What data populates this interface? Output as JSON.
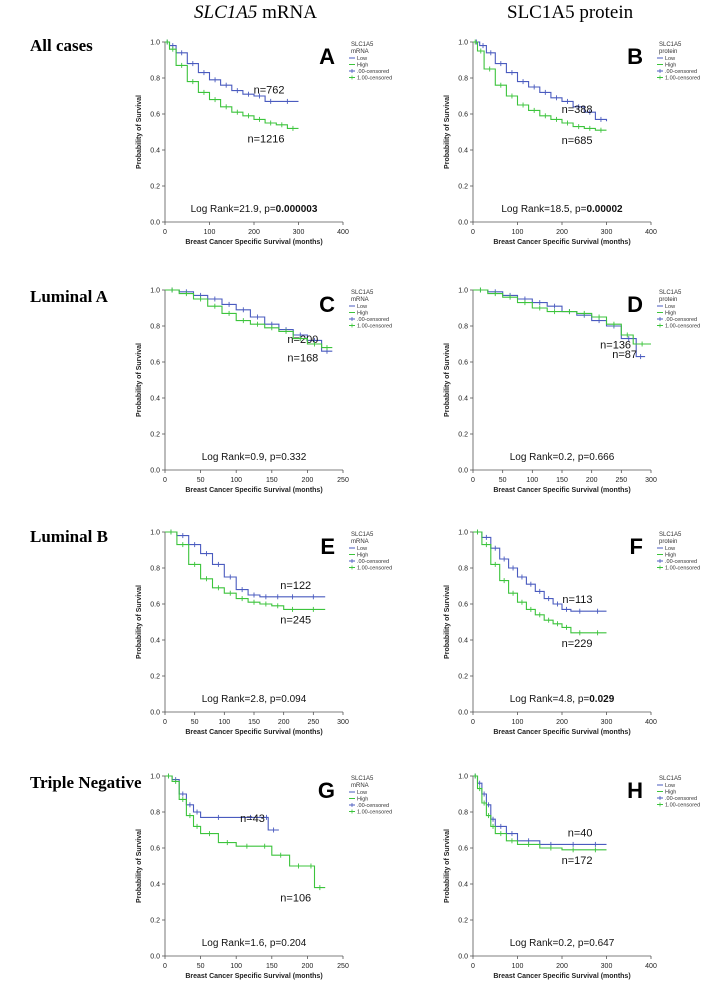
{
  "columns": [
    {
      "gene": "SLC1A5",
      "suffix": " mRNA"
    },
    {
      "gene": "SLC1A5 protein",
      "suffix": ""
    }
  ],
  "rows": [
    "All cases",
    "Luminal A",
    "Luminal B",
    "Triple Negative"
  ],
  "common": {
    "x_label": "Breast Cancer Specific Survival (months)",
    "y_label": "Probability of Survival",
    "legend_items": [
      "Low",
      "High",
      ".00-censored",
      "1.00-censored"
    ],
    "colors": {
      "low": "#4a5bbf",
      "high": "#3cc43c"
    }
  },
  "chart_data": [
    {
      "panel": "A",
      "type": "line",
      "legend_title": [
        "SLC1A5",
        "mRNA"
      ],
      "xlim": [
        0,
        400
      ],
      "xticks": [
        0,
        100,
        200,
        300,
        400
      ],
      "ylim": [
        0,
        1
      ],
      "yticks": [
        0.0,
        0.2,
        0.4,
        0.6,
        0.8,
        1.0
      ],
      "series": [
        {
          "name": "Low",
          "n_label": "n=762",
          "x": [
            0,
            10,
            25,
            50,
            75,
            100,
            125,
            150,
            175,
            200,
            225,
            250,
            300
          ],
          "y": [
            1.0,
            0.98,
            0.94,
            0.88,
            0.83,
            0.79,
            0.76,
            0.73,
            0.71,
            0.7,
            0.67,
            0.67,
            0.67
          ]
        },
        {
          "name": "High",
          "n_label": "n=1216",
          "x": [
            0,
            10,
            25,
            50,
            75,
            100,
            125,
            150,
            175,
            200,
            225,
            250,
            275,
            300
          ],
          "y": [
            1.0,
            0.96,
            0.87,
            0.78,
            0.72,
            0.68,
            0.64,
            0.61,
            0.59,
            0.57,
            0.55,
            0.54,
            0.52,
            0.52
          ]
        }
      ],
      "stat_prefix": "Log Rank=21.9, p=",
      "p_value": "0.000003",
      "p_bold": true
    },
    {
      "panel": "B",
      "type": "line",
      "legend_title": [
        "SLC1A5",
        "protein"
      ],
      "xlim": [
        0,
        400
      ],
      "xticks": [
        0,
        100,
        200,
        300,
        400
      ],
      "ylim": [
        0,
        1
      ],
      "yticks": [
        0.0,
        0.2,
        0.4,
        0.6,
        0.8,
        1.0
      ],
      "series": [
        {
          "name": "Low",
          "n_label": "n=388",
          "x": [
            0,
            15,
            30,
            50,
            75,
            100,
            125,
            150,
            175,
            200,
            225,
            250,
            275,
            300
          ],
          "y": [
            1.0,
            0.98,
            0.94,
            0.88,
            0.83,
            0.78,
            0.75,
            0.72,
            0.69,
            0.67,
            0.64,
            0.61,
            0.57,
            0.56
          ]
        },
        {
          "name": "High",
          "n_label": "n=685",
          "x": [
            0,
            10,
            25,
            50,
            75,
            100,
            125,
            150,
            175,
            200,
            225,
            250,
            275,
            300
          ],
          "y": [
            1.0,
            0.95,
            0.85,
            0.76,
            0.7,
            0.65,
            0.62,
            0.59,
            0.57,
            0.55,
            0.53,
            0.52,
            0.51,
            0.51
          ]
        }
      ],
      "stat_prefix": "Log Rank=18.5, p=",
      "p_value": "0.00002",
      "p_bold": true
    },
    {
      "panel": "C",
      "type": "line",
      "legend_title": [
        "SLC1A5",
        "mRNA"
      ],
      "xlim": [
        0,
        250
      ],
      "xticks": [
        0,
        50,
        100,
        150,
        200,
        250
      ],
      "ylim": [
        0,
        1
      ],
      "yticks": [
        0.0,
        0.2,
        0.4,
        0.6,
        0.8,
        1.0
      ],
      "series": [
        {
          "name": "Low",
          "n_label": "n=200",
          "x": [
            0,
            20,
            40,
            60,
            80,
            100,
            120,
            140,
            160,
            180,
            200,
            220,
            235
          ],
          "y": [
            1.0,
            0.99,
            0.97,
            0.95,
            0.92,
            0.89,
            0.85,
            0.81,
            0.78,
            0.75,
            0.72,
            0.66,
            0.66
          ]
        },
        {
          "name": "High",
          "n_label": "n=168",
          "x": [
            0,
            20,
            40,
            60,
            80,
            100,
            120,
            140,
            160,
            180,
            200,
            220,
            235
          ],
          "y": [
            1.0,
            0.98,
            0.95,
            0.91,
            0.87,
            0.83,
            0.81,
            0.79,
            0.77,
            0.73,
            0.7,
            0.68,
            0.68
          ]
        }
      ],
      "stat_prefix": "Log Rank=0.9, p=",
      "p_value": "0.332",
      "p_bold": false
    },
    {
      "panel": "D",
      "type": "line",
      "legend_title": [
        "SLC1A5",
        "protein"
      ],
      "xlim": [
        0,
        300
      ],
      "xticks": [
        0,
        50,
        100,
        150,
        200,
        250,
        300
      ],
      "ylim": [
        0,
        1
      ],
      "yticks": [
        0.0,
        0.2,
        0.4,
        0.6,
        0.8,
        1.0
      ],
      "series": [
        {
          "name": "Low",
          "n_label": "n=136",
          "x": [
            0,
            25,
            50,
            75,
            100,
            125,
            150,
            175,
            200,
            225,
            250,
            275,
            290
          ],
          "y": [
            1.0,
            0.99,
            0.97,
            0.95,
            0.93,
            0.91,
            0.88,
            0.86,
            0.83,
            0.8,
            0.73,
            0.63,
            0.63
          ]
        },
        {
          "name": "High",
          "n_label": "n=87",
          "x": [
            0,
            25,
            50,
            75,
            100,
            125,
            150,
            175,
            200,
            225,
            250,
            270,
            300
          ],
          "y": [
            1.0,
            0.98,
            0.96,
            0.93,
            0.9,
            0.88,
            0.88,
            0.87,
            0.85,
            0.81,
            0.75,
            0.7,
            0.7
          ]
        }
      ],
      "stat_prefix": "Log Rank=0.2, p=",
      "p_value": "0.666",
      "p_bold": false
    },
    {
      "panel": "E",
      "type": "line",
      "legend_title": [
        "SLC1A5",
        "mRNA"
      ],
      "xlim": [
        0,
        300
      ],
      "xticks": [
        0,
        50,
        100,
        150,
        200,
        250,
        300
      ],
      "ylim": [
        0,
        1
      ],
      "yticks": [
        0.0,
        0.2,
        0.4,
        0.6,
        0.8,
        1.0
      ],
      "series": [
        {
          "name": "Low",
          "n_label": "n=122",
          "x": [
            0,
            20,
            40,
            60,
            80,
            100,
            120,
            140,
            160,
            180,
            200,
            230,
            270
          ],
          "y": [
            1.0,
            0.98,
            0.93,
            0.88,
            0.82,
            0.75,
            0.68,
            0.65,
            0.64,
            0.64,
            0.64,
            0.64,
            0.64
          ]
        },
        {
          "name": "High",
          "n_label": "n=245",
          "x": [
            0,
            20,
            40,
            60,
            80,
            100,
            120,
            140,
            160,
            180,
            200,
            230,
            270
          ],
          "y": [
            1.0,
            0.93,
            0.82,
            0.74,
            0.69,
            0.66,
            0.63,
            0.61,
            0.6,
            0.59,
            0.57,
            0.57,
            0.57
          ]
        }
      ],
      "stat_prefix": "Log Rank=2.8, p=",
      "p_value": "0.094",
      "p_bold": false
    },
    {
      "panel": "F",
      "type": "line",
      "legend_title": [
        "SLC1A5",
        "protein"
      ],
      "xlim": [
        0,
        400
      ],
      "xticks": [
        0,
        100,
        200,
        300,
        400
      ],
      "ylim": [
        0,
        1
      ],
      "yticks": [
        0.0,
        0.2,
        0.4,
        0.6,
        0.8,
        1.0
      ],
      "series": [
        {
          "name": "Low",
          "n_label": "n=113",
          "x": [
            0,
            20,
            40,
            60,
            80,
            100,
            120,
            140,
            160,
            180,
            200,
            220,
            260,
            300
          ],
          "y": [
            1.0,
            0.97,
            0.91,
            0.85,
            0.8,
            0.75,
            0.71,
            0.67,
            0.63,
            0.6,
            0.57,
            0.56,
            0.56,
            0.56
          ]
        },
        {
          "name": "High",
          "n_label": "n=229",
          "x": [
            0,
            20,
            40,
            60,
            80,
            100,
            120,
            140,
            160,
            180,
            200,
            220,
            260,
            300
          ],
          "y": [
            1.0,
            0.93,
            0.82,
            0.73,
            0.66,
            0.61,
            0.57,
            0.54,
            0.51,
            0.49,
            0.47,
            0.44,
            0.44,
            0.44
          ]
        }
      ],
      "stat_prefix": "Log Rank=4.8, p=",
      "p_value": "0.029",
      "p_bold": true
    },
    {
      "panel": "G",
      "type": "line",
      "legend_title": [
        "SLC1A5",
        "mRNA"
      ],
      "xlim": [
        0,
        250
      ],
      "xticks": [
        0,
        50,
        100,
        150,
        200,
        250
      ],
      "ylim": [
        0,
        1
      ],
      "yticks": [
        0.0,
        0.2,
        0.4,
        0.6,
        0.8,
        1.0
      ],
      "series": [
        {
          "name": "Low",
          "n_label": "n=43",
          "x": [
            0,
            10,
            20,
            30,
            40,
            50,
            100,
            140,
            145,
            160
          ],
          "y": [
            1.0,
            0.98,
            0.9,
            0.84,
            0.8,
            0.77,
            0.77,
            0.77,
            0.7,
            0.7
          ]
        },
        {
          "name": "High",
          "n_label": "n=106",
          "x": [
            0,
            10,
            20,
            30,
            40,
            50,
            75,
            100,
            130,
            150,
            175,
            200,
            210,
            225
          ],
          "y": [
            1.0,
            0.97,
            0.87,
            0.78,
            0.72,
            0.68,
            0.63,
            0.61,
            0.61,
            0.56,
            0.5,
            0.5,
            0.38,
            0.38
          ]
        }
      ],
      "stat_prefix": "Log Rank=1.6, p=",
      "p_value": "0.204",
      "p_bold": false
    },
    {
      "panel": "H",
      "type": "line",
      "legend_title": [
        "SLC1A5"
      ],
      "xlim": [
        0,
        400
      ],
      "xticks": [
        0,
        100,
        200,
        300,
        400
      ],
      "ylim": [
        0,
        1
      ],
      "yticks": [
        0.0,
        0.2,
        0.4,
        0.6,
        0.8,
        1.0
      ],
      "series": [
        {
          "name": "Low",
          "n_label": "n=40",
          "x": [
            0,
            10,
            20,
            30,
            40,
            50,
            75,
            100,
            150,
            200,
            250,
            300
          ],
          "y": [
            1.0,
            0.96,
            0.9,
            0.84,
            0.76,
            0.72,
            0.68,
            0.64,
            0.62,
            0.62,
            0.62,
            0.62
          ]
        },
        {
          "name": "High",
          "n_label": "n=172",
          "x": [
            0,
            10,
            20,
            30,
            40,
            50,
            75,
            100,
            150,
            200,
            250,
            300
          ],
          "y": [
            1.0,
            0.93,
            0.85,
            0.78,
            0.72,
            0.68,
            0.64,
            0.62,
            0.6,
            0.59,
            0.59,
            0.59
          ]
        }
      ],
      "stat_prefix": "Log Rank=0.2, p=",
      "p_value": "0.647",
      "p_bold": false
    }
  ]
}
